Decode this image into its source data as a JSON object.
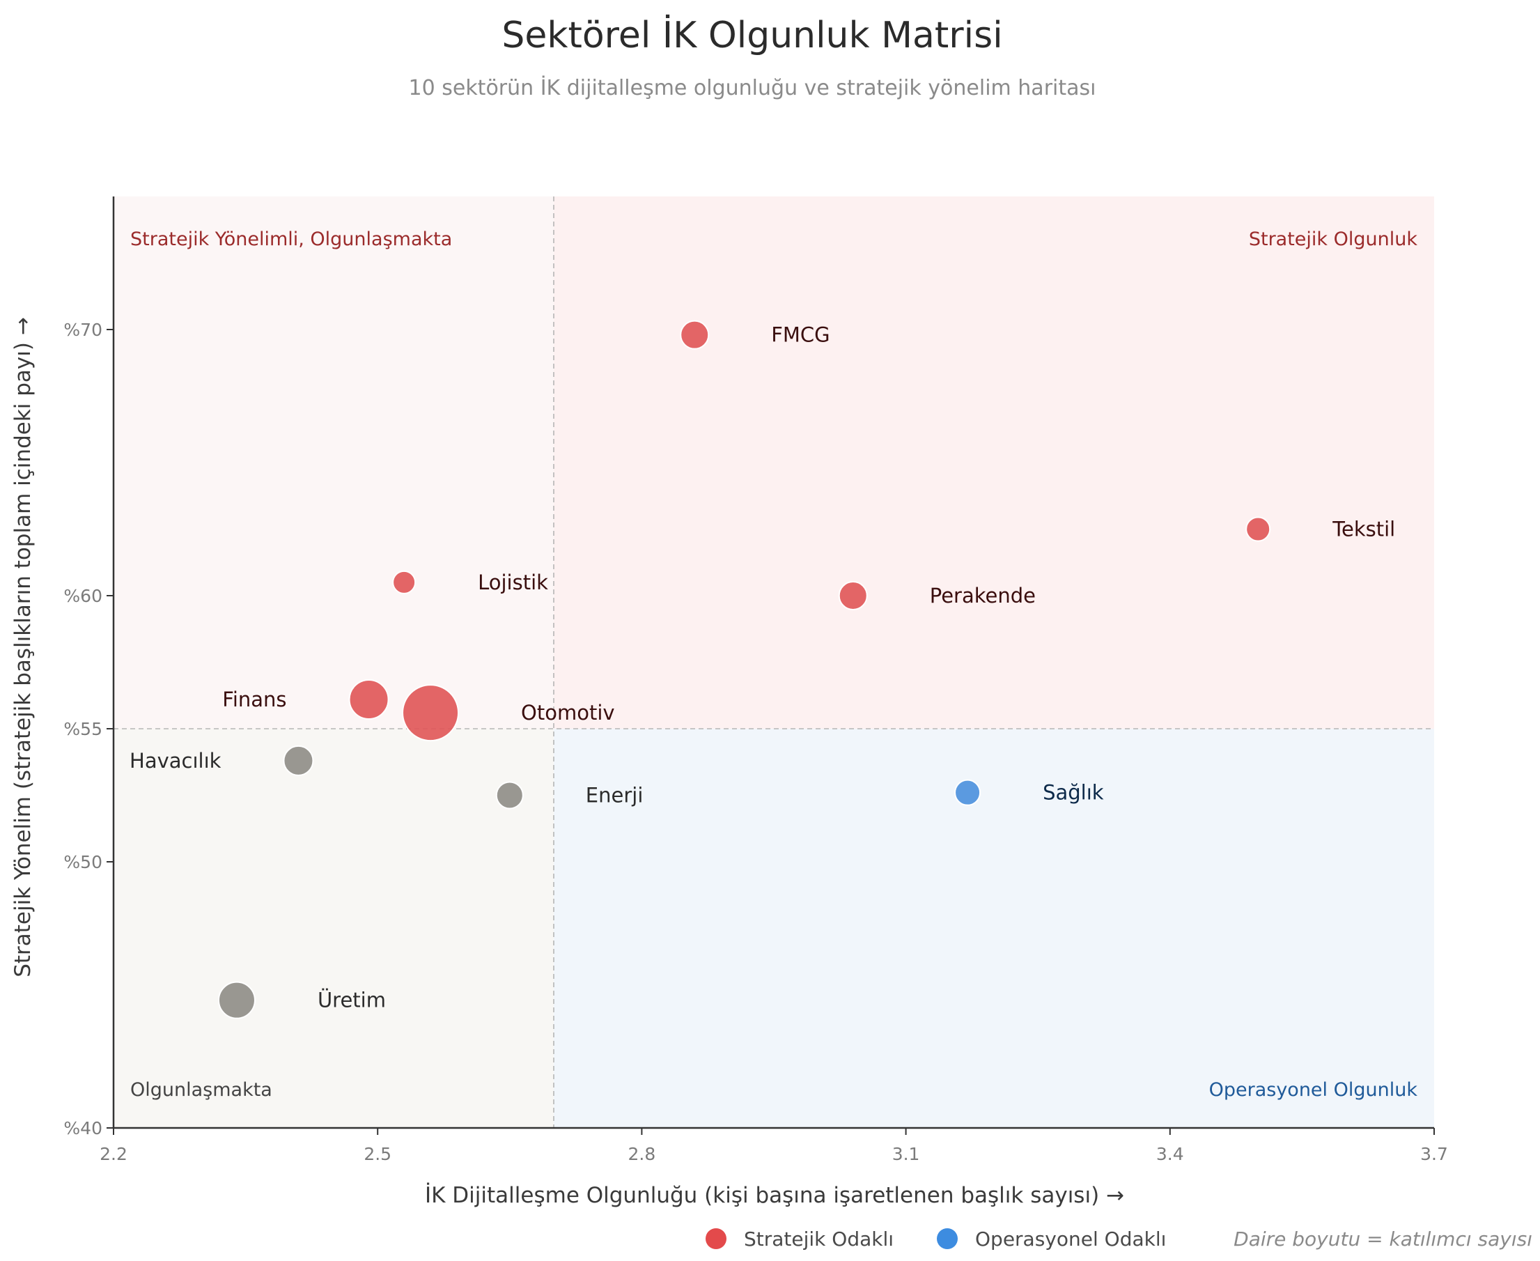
{
  "chart_data": {
    "type": "scatter",
    "title": "Sektörel İK Olgunluk Matrisi",
    "subtitle": "10 sektörün İK dijitalleşme olgunluğu ve stratejik yönelim haritası",
    "xlabel": "İK Dijitalleşme Olgunluğu (kişi başına işaretlenen başlık sayısı) →",
    "ylabel": "Stratejik Yönelim (stratejik başlıkların toplam içindeki payı) →",
    "xlim": [
      2.2,
      3.7
    ],
    "ylim": [
      40,
      75
    ],
    "x_ticks": [
      2.2,
      2.5,
      2.8,
      3.1,
      3.4,
      3.7
    ],
    "x_tick_labels": [
      "2.2",
      "2.5",
      "2.8",
      "3.1",
      "3.4",
      "3.7"
    ],
    "y_ticks": [
      40,
      50,
      55,
      60,
      70
    ],
    "y_tick_labels": [
      "%40",
      "%50",
      "%55",
      "%60",
      "%70"
    ],
    "threshold_x": 2.7,
    "threshold_y": 55,
    "grid": false,
    "quadrants": {
      "top_left": "Stratejik Yönelimli, Olgunlaşmakta",
      "top_right": "Stratejik Olgunluk",
      "bottom_left": "Olgunlaşmakta",
      "bottom_right": "Operasyonel Olgunluk"
    },
    "quadrant_colors": {
      "top_left": "#fcf6f6",
      "top_right": "#fdf1f1",
      "bottom_left": "#f8f7f4",
      "bottom_right": "#f1f6fb"
    },
    "quadrant_label_colors": {
      "top_left": "#9b2b2b",
      "top_right": "#9b2b2b",
      "bottom_left": "#444444",
      "bottom_right": "#1f5a99"
    },
    "points": [
      {
        "label": "FMCG",
        "x": 2.86,
        "y": 69.8,
        "size": 20,
        "group": "strategic",
        "label_side": "right"
      },
      {
        "label": "Tekstil",
        "x": 3.5,
        "y": 62.5,
        "size": 17,
        "group": "strategic",
        "label_side": "right"
      },
      {
        "label": "Lojistik",
        "x": 2.53,
        "y": 60.5,
        "size": 16,
        "group": "strategic",
        "label_side": "right"
      },
      {
        "label": "Perakende",
        "x": 3.04,
        "y": 60.0,
        "size": 20,
        "group": "strategic",
        "label_side": "right"
      },
      {
        "label": "Finans",
        "x": 2.49,
        "y": 56.1,
        "size": 28,
        "group": "strategic",
        "label_side": "left"
      },
      {
        "label": "Otomotiv",
        "x": 2.56,
        "y": 55.6,
        "size": 40,
        "group": "strategic",
        "label_side": "right"
      },
      {
        "label": "Havacılık",
        "x": 2.41,
        "y": 53.8,
        "size": 21,
        "group": "neutral",
        "label_side": "left"
      },
      {
        "label": "Enerji",
        "x": 2.65,
        "y": 52.5,
        "size": 19,
        "group": "neutral",
        "label_side": "right"
      },
      {
        "label": "Sağlık",
        "x": 3.17,
        "y": 52.6,
        "size": 18,
        "group": "operational",
        "label_side": "right"
      },
      {
        "label": "Üretim",
        "x": 2.34,
        "y": 44.8,
        "size": 26,
        "group": "neutral",
        "label_side": "right"
      }
    ],
    "group_colors": {
      "strategic": "#e05556",
      "operational": "#4a90dd",
      "neutral": "#8e8c86"
    },
    "label_colors": {
      "strategic": "#3a0e0e",
      "operational": "#0d2a4a",
      "neutral": "#2b2b2b"
    },
    "legend": {
      "placement": "bottom-right",
      "items": [
        {
          "label": "Stratejik Odaklı",
          "color": "#e34a4b"
        },
        {
          "label": "Operasyonel Odaklı",
          "color": "#3d8ce0"
        }
      ],
      "note": "Daire boyutu = katılımcı sayısı"
    }
  }
}
